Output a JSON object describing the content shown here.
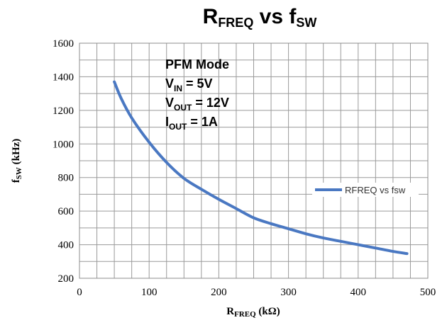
{
  "chart_data": {
    "type": "line",
    "title": {
      "main": "R",
      "main_sub": "FREQ",
      "mid": " vs f",
      "mid_sub": "SW"
    },
    "xlabel": {
      "main": "R",
      "sub": "FREQ",
      "unit": " (kΩ)"
    },
    "ylabel": {
      "main": "f",
      "sub": "SW",
      "unit": " (kHz)"
    },
    "xlim": [
      0,
      500
    ],
    "ylim": [
      200,
      1600
    ],
    "x_ticks": [
      "0",
      "100",
      "200",
      "300",
      "400",
      "500"
    ],
    "y_ticks": [
      "200",
      "400",
      "600",
      "800",
      "1000",
      "1200",
      "1400",
      "1600"
    ],
    "grid": true,
    "legend_position": "right",
    "annotations": [
      {
        "main": "PFM Mode",
        "sub": "",
        "rest": ""
      },
      {
        "main": "V",
        "sub": "IN",
        "rest": " = 5V"
      },
      {
        "main": "V",
        "sub": "OUT",
        "rest": " = 12V"
      },
      {
        "main": "I",
        "sub": "OUT",
        "rest": " = 1A"
      }
    ],
    "series": [
      {
        "name": "RFREQ vs fsw",
        "color": "#4a78c2",
        "x": [
          50,
          60,
          75,
          100,
          125,
          150,
          175,
          200,
          225,
          250,
          275,
          300,
          325,
          350,
          375,
          400,
          425,
          450,
          470
        ],
        "y": [
          1370,
          1270,
          1155,
          1010,
          890,
          795,
          730,
          670,
          615,
          560,
          525,
          495,
          465,
          440,
          420,
          400,
          380,
          360,
          347
        ]
      }
    ]
  }
}
